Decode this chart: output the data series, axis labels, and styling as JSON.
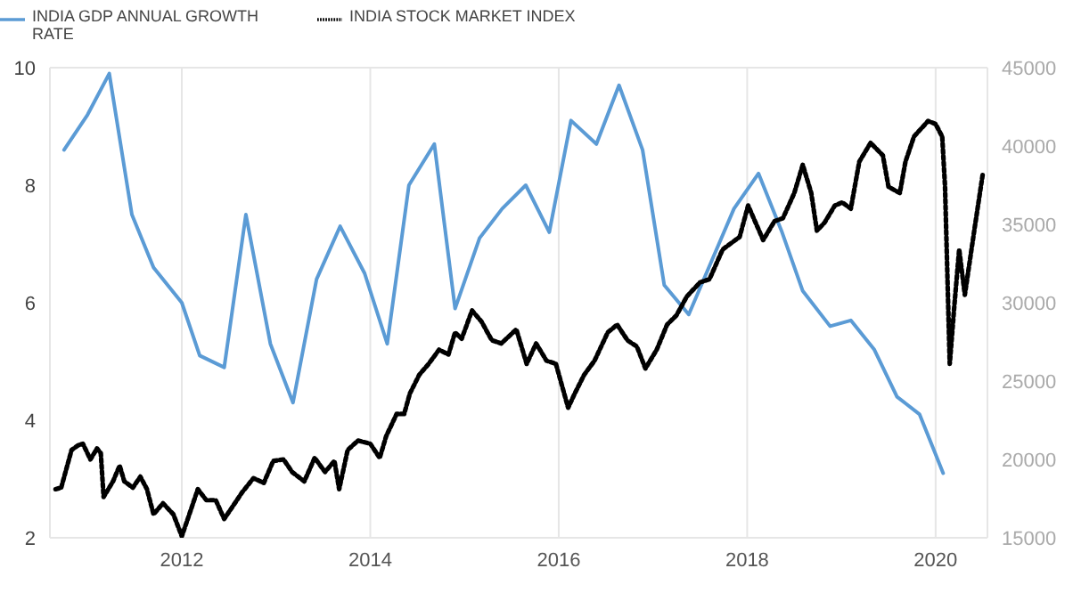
{
  "chart_data": {
    "type": "line",
    "xlim": [
      2010.6,
      2020.55
    ],
    "xticks": [
      2012,
      2014,
      2016,
      2018,
      2020
    ],
    "ylim": [
      2,
      10
    ],
    "yticks": [
      2,
      4,
      6,
      8,
      10
    ],
    "y2lim": [
      15000,
      45000
    ],
    "y2ticks": [
      15000,
      20000,
      25000,
      30000,
      35000,
      40000,
      45000
    ],
    "grid": true,
    "legend": "top left",
    "marker": "none",
    "series": [
      {
        "name": "INDIA GDP ANNUAL GROWTH RATE",
        "color": "#5b9bd5",
        "line_style": "solid",
        "x": [
          2010.75,
          2011.0,
          2011.23,
          2011.47,
          2011.7,
          2012.0,
          2012.19,
          2012.45,
          2012.68,
          2012.94,
          2013.18,
          2013.43,
          2013.68,
          2013.94,
          2014.18,
          2014.41,
          2014.68,
          2014.9,
          2015.16,
          2015.4,
          2015.65,
          2015.9,
          2016.13,
          2016.4,
          2016.64,
          2016.89,
          2017.12,
          2017.38,
          2017.62,
          2017.86,
          2018.12,
          2018.37,
          2018.59,
          2018.88,
          2019.1,
          2019.35,
          2019.59,
          2019.83,
          2020.08
        ],
        "values": [
          8.6,
          9.2,
          9.9,
          7.5,
          6.6,
          6.0,
          5.1,
          4.9,
          7.5,
          5.3,
          4.3,
          6.4,
          7.3,
          6.5,
          5.3,
          8.0,
          8.7,
          5.9,
          7.1,
          7.6,
          8.0,
          7.2,
          9.1,
          8.7,
          9.7,
          8.6,
          6.3,
          5.8,
          6.7,
          7.6,
          8.2,
          7.2,
          6.2,
          5.6,
          5.7,
          5.2,
          4.4,
          4.1,
          3.1
        ]
      },
      {
        "name": "INDIA STOCK MARKET INDEX",
        "color": "#000000",
        "line_style": "dotted",
        "axis": "y2",
        "x": [
          2010.66,
          2010.72,
          2010.83,
          2010.9,
          2010.95,
          2011.03,
          2011.1,
          2011.14,
          2011.17,
          2011.27,
          2011.34,
          2011.39,
          2011.48,
          2011.56,
          2011.63,
          2011.7,
          2011.8,
          2011.91,
          2012.0,
          2012.08,
          2012.17,
          2012.26,
          2012.36,
          2012.45,
          2012.54,
          2012.64,
          2012.76,
          2012.87,
          2012.97,
          2013.08,
          2013.17,
          2013.3,
          2013.41,
          2013.52,
          2013.62,
          2013.67,
          2013.76,
          2013.87,
          2014.0,
          2014.1,
          2014.17,
          2014.28,
          2014.36,
          2014.42,
          2014.52,
          2014.62,
          2014.73,
          2014.83,
          2014.9,
          2014.97,
          2015.08,
          2015.18,
          2015.29,
          2015.39,
          2015.55,
          2015.66,
          2015.76,
          2015.87,
          2015.97,
          2016.1,
          2016.17,
          2016.27,
          2016.38,
          2016.52,
          2016.62,
          2016.73,
          2016.83,
          2016.92,
          2017.04,
          2017.15,
          2017.25,
          2017.36,
          2017.5,
          2017.6,
          2017.74,
          2017.92,
          2018.01,
          2018.17,
          2018.29,
          2018.38,
          2018.5,
          2018.59,
          2018.68,
          2018.74,
          2018.82,
          2018.93,
          2019.01,
          2019.1,
          2019.19,
          2019.31,
          2019.44,
          2019.5,
          2019.62,
          2019.68,
          2019.77,
          2019.92,
          2020.0,
          2020.07,
          2020.1,
          2020.15,
          2020.2,
          2020.25,
          2020.31,
          2020.41,
          2020.5
        ],
        "values": [
          18100,
          18200,
          20600,
          20900,
          21000,
          20000,
          20700,
          20400,
          17600,
          18600,
          19600,
          18600,
          18200,
          18900,
          18100,
          16500,
          17200,
          16500,
          15100,
          16500,
          18100,
          17400,
          17400,
          16200,
          17000,
          17900,
          18800,
          18500,
          19900,
          20000,
          19200,
          18600,
          20100,
          19200,
          19900,
          18100,
          20600,
          21200,
          21000,
          20100,
          21500,
          22900,
          22900,
          24200,
          25400,
          26100,
          27000,
          26700,
          28100,
          27700,
          29500,
          28800,
          27600,
          27400,
          28300,
          26100,
          27400,
          26300,
          26100,
          23300,
          24200,
          25400,
          26300,
          28100,
          28600,
          27600,
          27200,
          25800,
          27000,
          28600,
          29200,
          30400,
          31300,
          31500,
          33400,
          34200,
          36200,
          34000,
          35200,
          35400,
          37000,
          38800,
          37000,
          34600,
          35100,
          36200,
          36400,
          36000,
          39000,
          40200,
          39400,
          37400,
          37000,
          39000,
          40600,
          41600,
          41400,
          40600,
          37400,
          26100,
          29900,
          33400,
          30500,
          34600,
          38200
        ]
      }
    ]
  }
}
